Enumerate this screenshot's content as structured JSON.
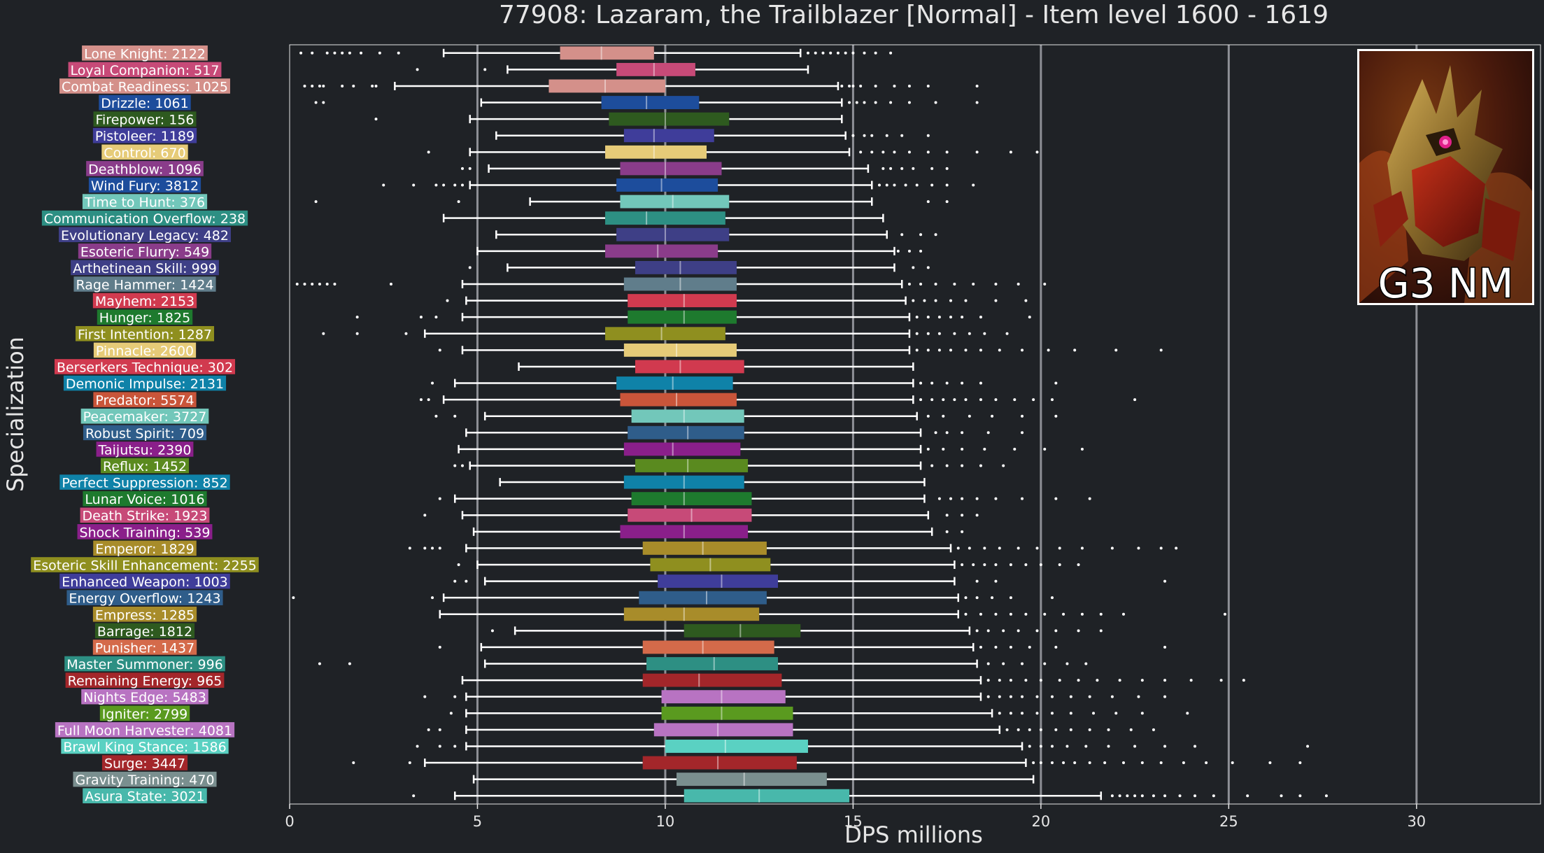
{
  "chart_data": {
    "type": "boxplot",
    "title": "77908: Lazaram, the Trailblazer [Normal] - Item level 1600 - 1619",
    "xlabel": "DPS millions",
    "ylabel": "Specialization",
    "xlim": [
      0,
      33.3
    ],
    "xticks": [
      0,
      5,
      10,
      15,
      20,
      25,
      30
    ],
    "grid": "vertical lines at 5, 10, 15, 20, 25, 30",
    "image_badge": "G3 NM",
    "series": [
      {
        "label": "Lone Knight: 2122",
        "color": "#d4908a",
        "whisker": [
          4.1,
          13.6
        ],
        "box": [
          7.2,
          9.7
        ],
        "median": 8.3,
        "outliers": [
          0.3,
          0.6,
          1.0,
          1.2,
          1.4,
          1.6,
          1.9,
          2.4,
          2.9,
          13.8,
          14.0,
          14.2,
          14.4,
          14.6,
          14.8,
          15.0,
          15.3,
          15.6,
          16.0
        ]
      },
      {
        "label": "Loyal Companion: 517",
        "color": "#c74a78",
        "whisker": [
          5.8,
          13.8
        ],
        "box": [
          8.7,
          10.8
        ],
        "median": 9.7,
        "outliers": [
          3.4,
          5.2
        ]
      },
      {
        "label": "Combat Readiness: 1025",
        "color": "#d4908a",
        "whisker": [
          2.8,
          14.6
        ],
        "box": [
          6.9,
          10.0
        ],
        "median": 8.4,
        "outliers": [
          0.4,
          0.6,
          0.8,
          0.9,
          1.4,
          1.7,
          2.2,
          2.3,
          14.7,
          14.9,
          15.0,
          15.2,
          15.6,
          16.1,
          16.5,
          17.0,
          18.3
        ]
      },
      {
        "label": "Drizzle: 1061",
        "color": "#1d4d9c",
        "whisker": [
          5.1,
          14.7
        ],
        "box": [
          8.3,
          10.9
        ],
        "median": 9.5,
        "outliers": [
          0.7,
          0.9,
          14.9,
          15.1,
          15.3,
          15.6,
          16.0,
          16.5,
          17.2,
          18.3
        ]
      },
      {
        "label": "Firepower: 156",
        "color": "#2e5a1f",
        "whisker": [
          4.8,
          14.7
        ],
        "box": [
          8.5,
          11.7
        ],
        "median": 10.0,
        "outliers": [
          2.3
        ]
      },
      {
        "label": "Pistoleer: 1189",
        "color": "#3f3d9a",
        "whisker": [
          5.5,
          14.8
        ],
        "box": [
          8.9,
          11.3
        ],
        "median": 9.7,
        "outliers": [
          15.0,
          15.3,
          15.5,
          15.9,
          16.3,
          17.0
        ]
      },
      {
        "label": "Control: 670",
        "color": "#e6cb78",
        "whisker": [
          4.8,
          14.9
        ],
        "box": [
          8.4,
          11.1
        ],
        "median": 9.7,
        "outliers": [
          3.7,
          15.2,
          15.5,
          15.8,
          16.1,
          16.5,
          17.0,
          17.5,
          18.3,
          19.2,
          19.9
        ]
      },
      {
        "label": "Deathblow: 1096",
        "color": "#8a3c8a",
        "whisker": [
          5.3,
          15.4
        ],
        "box": [
          8.8,
          11.5
        ],
        "median": 10.0,
        "outliers": [
          4.6,
          4.8,
          15.8,
          16.0,
          16.3,
          16.6,
          17.1,
          17.5
        ]
      },
      {
        "label": "Wind Fury: 3812",
        "color": "#1d4d9c",
        "whisker": [
          4.8,
          15.5
        ],
        "box": [
          8.7,
          11.4
        ],
        "median": 9.9,
        "outliers": [
          2.5,
          3.3,
          3.9,
          4.1,
          4.4,
          4.6,
          15.7,
          15.9,
          16.1,
          16.4,
          16.7,
          17.1,
          17.5,
          18.2
        ]
      },
      {
        "label": "Time to Hunt: 376",
        "color": "#72c7ba",
        "whisker": [
          6.4,
          15.5
        ],
        "box": [
          8.8,
          11.7
        ],
        "median": 10.2,
        "outliers": [
          0.7,
          4.5,
          17.0,
          17.5
        ]
      },
      {
        "label": "Communication Overflow: 238",
        "color": "#2d8f83",
        "whisker": [
          4.1,
          15.8
        ],
        "box": [
          8.4,
          11.6
        ],
        "median": 9.5,
        "outliers": []
      },
      {
        "label": "Evolutionary Legacy: 482",
        "color": "#3e3f86",
        "whisker": [
          5.5,
          15.9
        ],
        "box": [
          8.7,
          11.7
        ],
        "median": 10.0,
        "outliers": [
          16.3,
          16.8,
          17.2
        ]
      },
      {
        "label": "Esoteric Flurry: 549",
        "color": "#8a3c8a",
        "whisker": [
          5.0,
          16.1
        ],
        "box": [
          8.4,
          11.4
        ],
        "median": 9.8,
        "outliers": [
          16.2,
          16.5,
          16.8
        ]
      },
      {
        "label": "Arthetinean Skill: 999",
        "color": "#3e3f86",
        "whisker": [
          5.8,
          16.1
        ],
        "box": [
          9.2,
          11.9
        ],
        "median": 10.4,
        "outliers": [
          4.8,
          16.6,
          17.0
        ]
      },
      {
        "label": "Rage Hammer: 1424",
        "color": "#607d8b",
        "whisker": [
          4.6,
          16.3
        ],
        "box": [
          8.9,
          11.9
        ],
        "median": 10.4,
        "outliers": [
          0.2,
          0.4,
          0.6,
          0.8,
          1.0,
          1.2,
          2.7,
          16.5,
          16.8,
          17.2,
          17.7,
          18.2,
          18.8,
          19.4,
          20.1
        ]
      },
      {
        "label": "Mayhem: 2153",
        "color": "#d13a4f",
        "whisker": [
          4.7,
          16.4
        ],
        "box": [
          9.0,
          11.9
        ],
        "median": 10.5,
        "outliers": [
          4.2,
          16.6,
          16.9,
          17.2,
          17.6,
          18.0,
          18.8,
          19.6
        ]
      },
      {
        "label": "Hunger: 1825",
        "color": "#1e7a2e",
        "whisker": [
          4.6,
          16.5
        ],
        "box": [
          9.0,
          11.9
        ],
        "median": 10.5,
        "outliers": [
          1.8,
          3.5,
          3.9,
          16.7,
          17.0,
          17.3,
          17.6,
          17.9,
          18.4,
          19.7
        ]
      },
      {
        "label": "First Intention: 1287",
        "color": "#8f8f1f",
        "whisker": [
          3.6,
          16.5
        ],
        "box": [
          8.4,
          11.6
        ],
        "median": 9.9,
        "outliers": [
          0.9,
          1.8,
          3.1,
          16.7,
          17.0,
          17.3,
          17.7,
          18.1,
          18.5,
          19.1
        ]
      },
      {
        "label": "Pinnacle: 2600",
        "color": "#e6cb78",
        "whisker": [
          4.6,
          16.5
        ],
        "box": [
          8.9,
          11.9
        ],
        "median": 10.3,
        "outliers": [
          4.0,
          16.7,
          17.0,
          17.3,
          17.6,
          18.0,
          18.4,
          18.9,
          19.5,
          20.2,
          20.9,
          22.0,
          23.2
        ]
      },
      {
        "label": "Berserkers Technique: 302",
        "color": "#d13a4f",
        "whisker": [
          6.1,
          16.6
        ],
        "box": [
          9.2,
          12.1
        ],
        "median": 10.4,
        "outliers": []
      },
      {
        "label": "Demonic Impulse: 2131",
        "color": "#0f82a8",
        "whisker": [
          4.4,
          16.6
        ],
        "box": [
          8.7,
          11.8
        ],
        "median": 10.2,
        "outliers": [
          3.8,
          16.8,
          17.1,
          17.5,
          17.9,
          18.4,
          20.4
        ]
      },
      {
        "label": "Predator: 5574",
        "color": "#c9553a",
        "whisker": [
          4.1,
          16.6
        ],
        "box": [
          8.8,
          11.9
        ],
        "median": 10.3,
        "outliers": [
          3.5,
          3.7,
          16.8,
          17.1,
          17.4,
          17.7,
          18.0,
          18.4,
          18.8,
          19.3,
          19.8,
          20.3,
          22.5
        ]
      },
      {
        "label": "Peacemaker: 3727",
        "color": "#72c7ba",
        "whisker": [
          5.2,
          16.7
        ],
        "box": [
          9.1,
          12.1
        ],
        "median": 10.5,
        "outliers": [
          3.9,
          4.4,
          17.0,
          17.4,
          18.1,
          18.7,
          19.5,
          20.4
        ]
      },
      {
        "label": "Robust Spirit: 709",
        "color": "#2f5d8a",
        "whisker": [
          4.7,
          16.8
        ],
        "box": [
          9.0,
          12.1
        ],
        "median": 10.6,
        "outliers": [
          17.2,
          17.5,
          17.9,
          18.6,
          19.5
        ]
      },
      {
        "label": "Taijutsu: 2390",
        "color": "#8a1f8a",
        "whisker": [
          4.5,
          16.8
        ],
        "box": [
          8.9,
          12.0
        ],
        "median": 10.2,
        "outliers": [
          17.0,
          17.4,
          17.9,
          18.5,
          19.3,
          20.1,
          21.1
        ]
      },
      {
        "label": "Reflux: 1452",
        "color": "#5a8a1f",
        "whisker": [
          4.8,
          16.8
        ],
        "box": [
          9.2,
          12.2
        ],
        "median": 10.6,
        "outliers": [
          4.4,
          4.6,
          17.1,
          17.5,
          17.9,
          18.4,
          19.0
        ]
      },
      {
        "label": "Perfect Suppression: 852",
        "color": "#0f82a8",
        "whisker": [
          5.6,
          16.9
        ],
        "box": [
          8.9,
          12.1
        ],
        "median": 10.5,
        "outliers": []
      },
      {
        "label": "Lunar Voice: 1016",
        "color": "#1e7a2e",
        "whisker": [
          4.4,
          16.9
        ],
        "box": [
          9.1,
          12.3
        ],
        "median": 10.5,
        "outliers": [
          4.0,
          17.3,
          17.6,
          17.9,
          18.3,
          18.8,
          19.5,
          20.4,
          21.3
        ]
      },
      {
        "label": "Death Strike: 1923",
        "color": "#c74a78",
        "whisker": [
          4.6,
          17.0
        ],
        "box": [
          9.0,
          12.3
        ],
        "median": 10.7,
        "outliers": [
          3.6,
          17.5,
          17.9,
          18.3
        ]
      },
      {
        "label": "Shock Training: 539",
        "color": "#8a1f8a",
        "whisker": [
          4.9,
          17.1
        ],
        "box": [
          8.8,
          12.2
        ],
        "median": 10.5,
        "outliers": [
          17.5,
          17.9
        ]
      },
      {
        "label": "Emperor: 1829",
        "color": "#a88c2a",
        "whisker": [
          4.7,
          17.6
        ],
        "box": [
          9.4,
          12.7
        ],
        "median": 11.0,
        "outliers": [
          3.2,
          3.6,
          3.8,
          4.0,
          17.8,
          18.1,
          18.5,
          18.9,
          19.4,
          19.9,
          20.5,
          21.1,
          21.9,
          22.6,
          23.2,
          23.6
        ]
      },
      {
        "label": "Esoteric Skill Enhancement: 2255",
        "color": "#8f8f1f",
        "whisker": [
          5.0,
          17.7
        ],
        "box": [
          9.6,
          12.8
        ],
        "median": 11.2,
        "outliers": [
          4.5,
          17.9,
          18.2,
          18.5,
          18.8,
          19.2,
          19.6,
          20.0,
          20.5,
          21.0
        ]
      },
      {
        "label": "Enhanced Weapon: 1003",
        "color": "#3f3d9a",
        "whisker": [
          5.2,
          17.7
        ],
        "box": [
          9.8,
          13.0
        ],
        "median": 11.5,
        "outliers": [
          4.4,
          4.7,
          18.3,
          18.8,
          23.3
        ]
      },
      {
        "label": "Energy Overflow: 1243",
        "color": "#2f5d8a",
        "whisker": [
          4.1,
          17.8
        ],
        "box": [
          9.3,
          12.7
        ],
        "median": 11.1,
        "outliers": [
          0.1,
          3.8,
          18.0,
          18.3,
          18.7,
          19.2,
          20.3
        ]
      },
      {
        "label": "Empress: 1285",
        "color": "#a88c2a",
        "whisker": [
          4.0,
          17.8
        ],
        "box": [
          8.9,
          12.5
        ],
        "median": 10.5,
        "outliers": [
          18.0,
          18.4,
          18.8,
          19.2,
          19.6,
          20.1,
          20.6,
          21.1,
          21.6,
          22.2,
          24.9
        ]
      },
      {
        "label": "Barrage: 1812",
        "color": "#2e5a1f",
        "whisker": [
          6.0,
          18.1
        ],
        "box": [
          10.5,
          13.6
        ],
        "median": 12.0,
        "outliers": [
          5.4,
          18.3,
          18.6,
          19.0,
          19.4,
          19.9,
          20.4,
          21.0,
          21.6
        ]
      },
      {
        "label": "Punisher: 1437",
        "color": "#d46a4a",
        "whisker": [
          5.1,
          18.2
        ],
        "box": [
          9.4,
          12.9
        ],
        "median": 11.0,
        "outliers": [
          4.0,
          18.4,
          18.8,
          19.2,
          19.7,
          20.4,
          23.3
        ]
      },
      {
        "label": "Master Summoner: 996",
        "color": "#2d8f83",
        "whisker": [
          5.2,
          18.3
        ],
        "box": [
          9.5,
          13.0
        ],
        "median": 11.3,
        "outliers": [
          0.8,
          1.6,
          18.6,
          19.0,
          19.5,
          20.1,
          20.7,
          21.2
        ]
      },
      {
        "label": "Remaining Energy: 965",
        "color": "#a3262a",
        "whisker": [
          4.6,
          18.4
        ],
        "box": [
          9.4,
          13.1
        ],
        "median": 10.9,
        "outliers": [
          18.6,
          18.9,
          19.2,
          19.6,
          20.0,
          20.5,
          21.0,
          21.5,
          22.1,
          22.7,
          23.3,
          24.0,
          24.8,
          25.4
        ]
      },
      {
        "label": "Nights Edge: 5483",
        "color": "#b873c2",
        "whisker": [
          4.7,
          18.4
        ],
        "box": [
          9.9,
          13.2
        ],
        "median": 11.5,
        "outliers": [
          3.6,
          4.4,
          18.6,
          18.9,
          19.2,
          19.5,
          19.9,
          20.3,
          20.8,
          21.3,
          21.9,
          22.6,
          23.3
        ]
      },
      {
        "label": "Igniter: 2799",
        "color": "#5a9a1f",
        "whisker": [
          4.7,
          18.7
        ],
        "box": [
          9.9,
          13.4
        ],
        "median": 11.5,
        "outliers": [
          4.3,
          18.9,
          19.2,
          19.5,
          19.9,
          20.3,
          20.8,
          21.4,
          22.0,
          22.7,
          23.9
        ]
      },
      {
        "label": "Full Moon Harvester: 4081",
        "color": "#b873c2",
        "whisker": [
          4.7,
          18.9
        ],
        "box": [
          9.7,
          13.4
        ],
        "median": 11.4,
        "outliers": [
          3.7,
          4.0,
          19.1,
          19.4,
          19.7,
          20.0,
          20.4,
          20.8,
          21.3,
          21.8,
          22.4,
          23.0
        ]
      },
      {
        "label": "Brawl King Stance: 1586",
        "color": "#5ad1c2",
        "whisker": [
          4.7,
          19.5
        ],
        "box": [
          10.0,
          13.8
        ],
        "median": 11.6,
        "outliers": [
          3.4,
          4.0,
          4.4,
          19.7,
          20.0,
          20.3,
          20.7,
          21.2,
          21.8,
          22.5,
          23.3,
          24.1,
          27.1
        ]
      },
      {
        "label": "Surge: 3447",
        "color": "#a3262a",
        "whisker": [
          3.6,
          19.6
        ],
        "box": [
          9.4,
          13.5
        ],
        "median": 11.4,
        "outliers": [
          1.7,
          3.2,
          19.8,
          20.0,
          20.3,
          20.6,
          20.9,
          21.3,
          21.7,
          22.2,
          22.7,
          23.2,
          23.8,
          24.4,
          25.1,
          26.1,
          26.9
        ]
      },
      {
        "label": "Gravity Training: 470",
        "color": "#7a8f8f",
        "whisker": [
          4.9,
          19.8
        ],
        "box": [
          10.3,
          14.3
        ],
        "median": 12.1,
        "outliers": []
      },
      {
        "label": "Asura State: 3021",
        "color": "#48b8ab",
        "whisker": [
          4.4,
          21.6
        ],
        "box": [
          10.5,
          14.9
        ],
        "median": 12.5,
        "outliers": [
          3.3,
          21.9,
          22.1,
          22.3,
          22.5,
          22.7,
          23.0,
          23.3,
          23.7,
          24.1,
          24.6,
          25.5,
          26.4,
          26.9,
          27.6
        ]
      }
    ]
  }
}
